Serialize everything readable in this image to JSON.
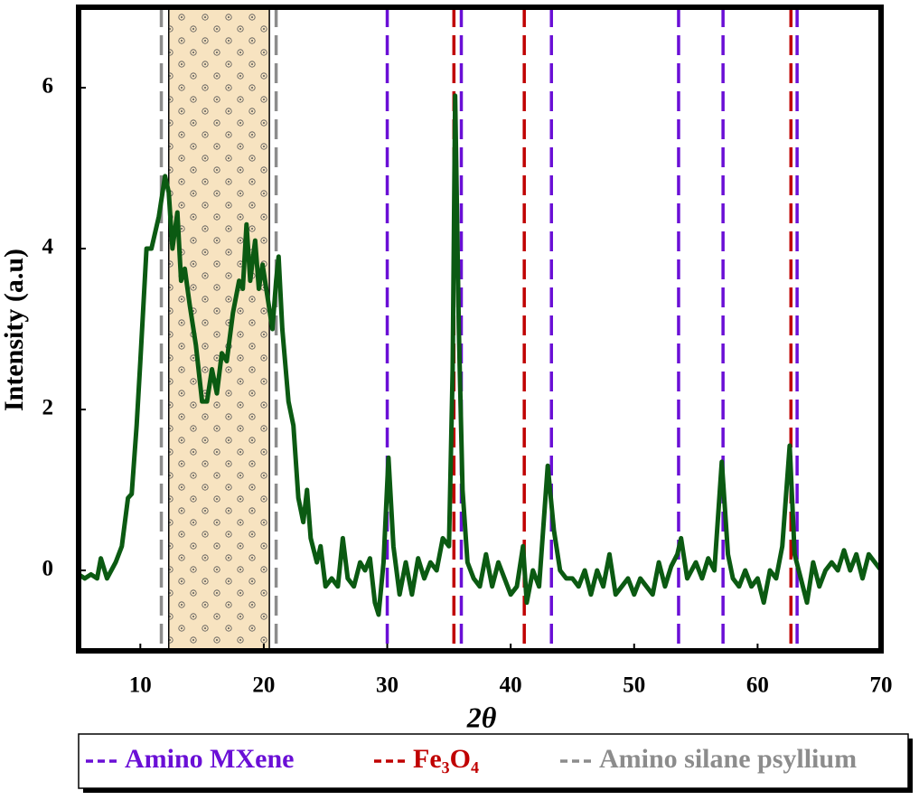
{
  "chart_data": {
    "type": "line",
    "xlabel": "2θ",
    "ylabel": "Intensity (a.u)",
    "color": "#0b5a12",
    "xlim": [
      5,
      70
    ],
    "ylim": [
      -1,
      7
    ],
    "xticks": [
      10,
      20,
      30,
      40,
      50,
      60,
      70
    ],
    "yticks": [
      0,
      2,
      4,
      6
    ],
    "x": [
      5,
      5.5,
      6,
      6.5,
      6.8,
      7.3,
      8,
      8.5,
      9,
      9.3,
      9.7,
      10,
      10.5,
      10.9,
      11.5,
      12,
      12.3,
      12.6,
      13,
      13.3,
      13.6,
      14,
      14.5,
      15,
      15.4,
      15.8,
      16.2,
      16.6,
      17,
      17.5,
      18,
      18.3,
      18.6,
      18.9,
      19.3,
      19.6,
      19.9,
      20.3,
      20.7,
      21,
      21.2,
      21.5,
      22,
      22.4,
      22.8,
      23.2,
      23.5,
      23.8,
      24.3,
      24.6,
      25,
      25.5,
      26,
      26.4,
      26.8,
      27.3,
      27.8,
      28.2,
      28.6,
      29,
      29.3,
      29.7,
      30.1,
      30.5,
      31,
      31.5,
      32,
      32.5,
      33,
      33.5,
      34,
      34.5,
      35,
      35.3,
      35.5,
      35.8,
      36.1,
      36.5,
      37,
      37.5,
      38,
      38.5,
      39,
      39.5,
      40,
      40.5,
      41,
      41.3,
      41.8,
      42.3,
      43,
      43.5,
      44,
      44.5,
      45,
      45.5,
      46,
      46.5,
      47,
      47.5,
      48,
      48.5,
      49,
      49.5,
      50,
      50.5,
      51,
      51.5,
      52,
      52.5,
      53,
      53.5,
      53.8,
      54.3,
      55,
      55.5,
      56,
      56.5,
      57.1,
      57.6,
      58,
      58.5,
      59,
      59.5,
      60,
      60.5,
      61,
      61.5,
      62,
      62.6,
      63,
      63.5,
      64,
      64.5,
      65,
      65.5,
      66,
      66.5,
      67,
      67.5,
      68,
      68.5,
      69,
      69.5,
      70
    ],
    "values": [
      -0.05,
      -0.1,
      -0.05,
      -0.1,
      0.15,
      -0.1,
      0.1,
      0.3,
      0.9,
      0.95,
      1.8,
      2.6,
      4.0,
      4.0,
      4.4,
      4.9,
      4.7,
      4.0,
      4.45,
      3.6,
      3.75,
      3.3,
      2.8,
      2.1,
      2.1,
      2.5,
      2.2,
      2.7,
      2.6,
      3.2,
      3.6,
      3.5,
      4.3,
      3.6,
      4.1,
      3.5,
      3.8,
      3.4,
      3.0,
      3.6,
      3.9,
      3.0,
      2.1,
      1.8,
      0.9,
      0.6,
      1.0,
      0.4,
      0.1,
      0.3,
      -0.2,
      -0.1,
      -0.2,
      0.4,
      -0.1,
      -0.2,
      0.1,
      0.0,
      0.15,
      -0.4,
      -0.55,
      0.1,
      1.4,
      0.3,
      -0.3,
      0.1,
      -0.3,
      0.15,
      -0.1,
      0.1,
      0.0,
      0.4,
      0.3,
      2.5,
      5.9,
      3.0,
      1.0,
      0.1,
      -0.1,
      -0.2,
      0.2,
      -0.2,
      0.1,
      -0.1,
      -0.3,
      -0.2,
      0.3,
      -0.4,
      0.0,
      -0.2,
      1.3,
      0.5,
      0.0,
      -0.1,
      -0.1,
      -0.2,
      0.0,
      -0.3,
      0.0,
      -0.2,
      0.2,
      -0.3,
      -0.2,
      -0.1,
      -0.3,
      -0.1,
      -0.2,
      -0.3,
      0.1,
      -0.2,
      0.05,
      0.2,
      0.4,
      -0.1,
      0.1,
      -0.1,
      0.15,
      0.0,
      1.35,
      0.2,
      -0.1,
      -0.2,
      0.0,
      -0.2,
      -0.1,
      -0.4,
      0.0,
      -0.1,
      0.3,
      1.55,
      0.2,
      -0.1,
      -0.4,
      0.1,
      -0.2,
      0.0,
      0.1,
      0.0,
      0.25,
      0.0,
      0.2,
      -0.1,
      0.2,
      0.1,
      0.0
    ],
    "shaded_region": {
      "range": [
        12.3,
        20.45
      ],
      "color": "#f7e3c0"
    },
    "reference_lines": [
      {
        "name": "Amino MXene",
        "color": "#6a0fd6",
        "positions": [
          30.0,
          36.0,
          43.3,
          53.6,
          57.2,
          63.2
        ]
      },
      {
        "name": "Fe₃O₄",
        "color": "#c00000",
        "positions": [
          35.4,
          41.1,
          62.7
        ]
      },
      {
        "name": "Amino silane psyllium",
        "color": "#8c8c8c",
        "positions": [
          11.7,
          21.0
        ]
      }
    ]
  }
}
